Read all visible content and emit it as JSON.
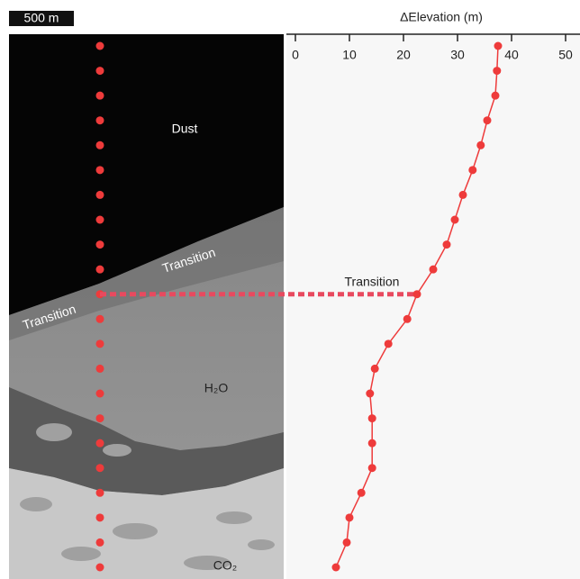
{
  "scale_bar": "500 m",
  "image_labels": {
    "dust": "Dust",
    "transition_upper": "Transition",
    "transition_lower": "Transition",
    "water": "H₂O",
    "co2": "CO₂"
  },
  "chart_data": {
    "type": "line",
    "x_label": "ΔElevation (m)",
    "categories": [
      null,
      null,
      null,
      null,
      null,
      null,
      null,
      null,
      null,
      null,
      null,
      null,
      null,
      null,
      null,
      null,
      null,
      null,
      null,
      null,
      null,
      null
    ],
    "values": [
      37.5,
      37.3,
      37,
      35.5,
      34.3,
      32.8,
      31,
      29.5,
      28,
      25.5,
      22.5,
      20.7,
      17.2,
      14.7,
      13.8,
      14.2,
      14.2,
      14.2,
      12.2,
      10,
      9.5,
      7.5
    ],
    "color": "#ee3b3b",
    "xlim": [
      0,
      50
    ],
    "xticks": [
      0,
      10,
      20,
      30,
      40,
      50
    ],
    "annotation": "Transition"
  }
}
